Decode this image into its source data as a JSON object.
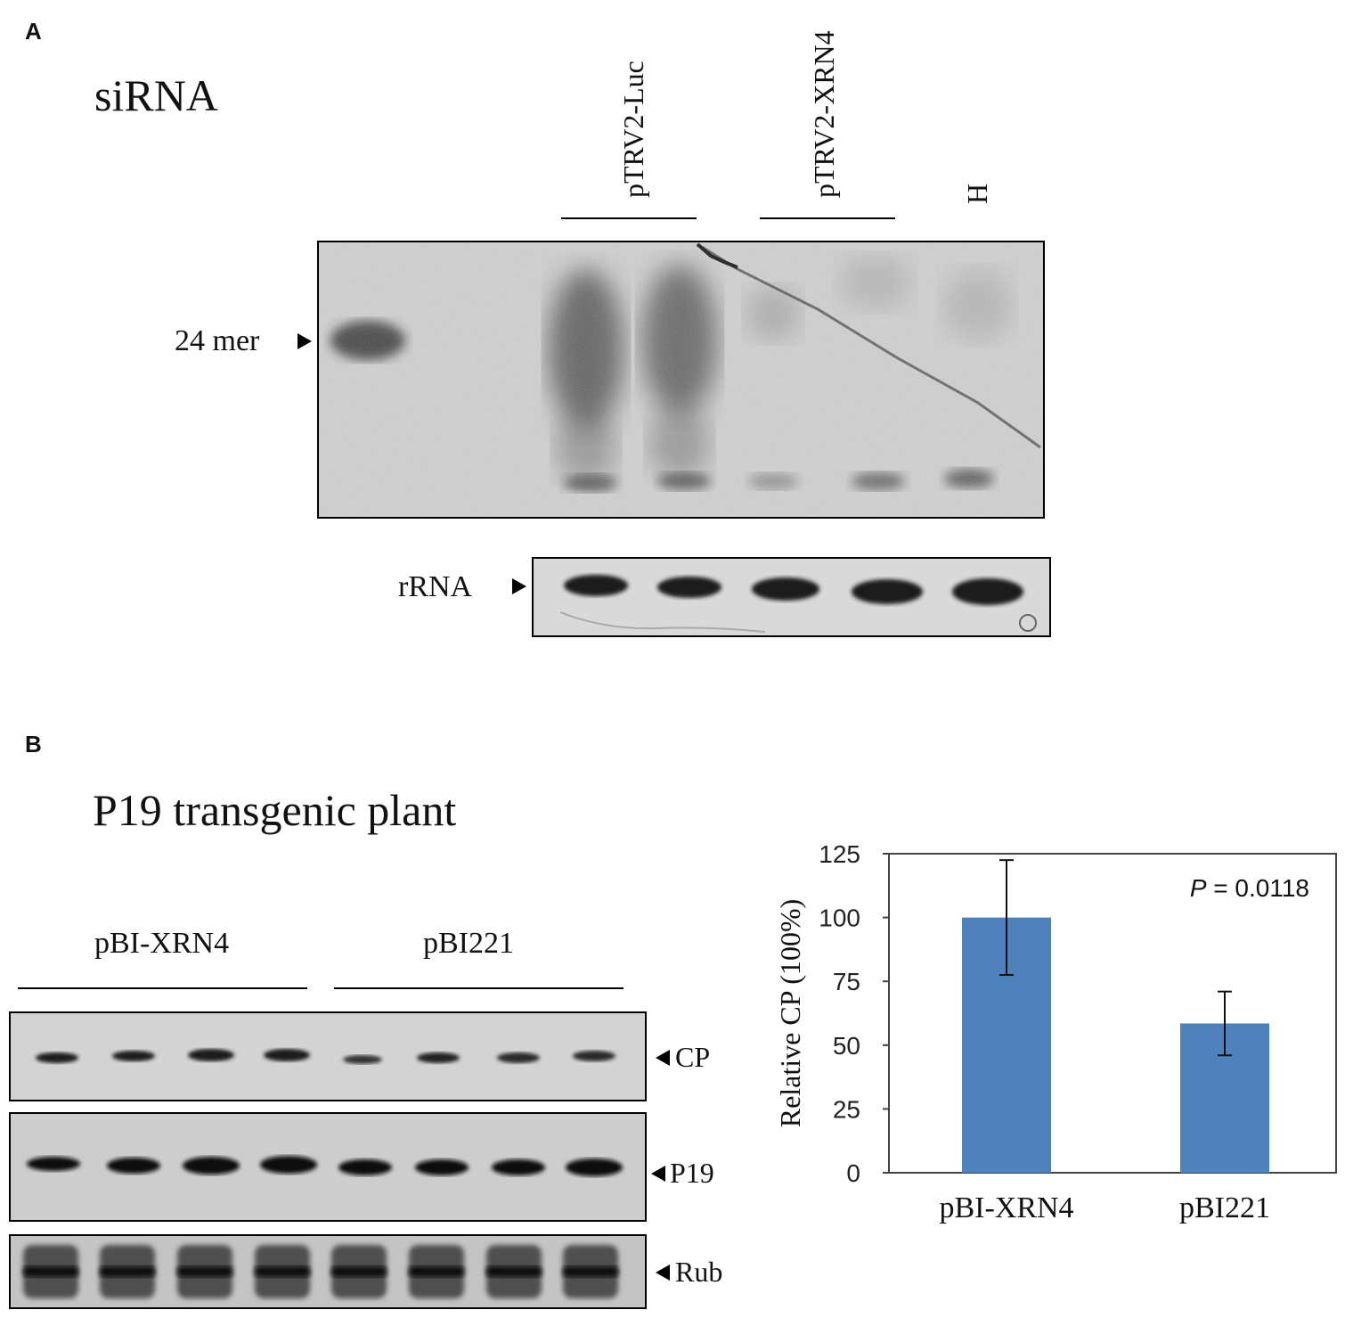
{
  "panel_a": {
    "letter": "A",
    "title": "siRNA",
    "lane_groups": [
      {
        "label": "pTRV2-Luc"
      },
      {
        "label": "pTRV2-XRN4"
      },
      {
        "label": "H"
      }
    ],
    "marker_label": "24 mer",
    "rrna_label": "rRNA"
  },
  "panel_b": {
    "letter": "B",
    "title": "P19 transgenic plant",
    "groups": [
      {
        "label": "pBI-XRN4"
      },
      {
        "label": "pBI221"
      }
    ],
    "blot_labels": {
      "cp": "CP",
      "p19": "P19",
      "rub": "Rub"
    }
  },
  "chart_data": {
    "type": "bar",
    "categories": [
      "pBI-XRN4",
      "pBI221"
    ],
    "values": [
      100,
      58.5
    ],
    "error": [
      22.5,
      12.5
    ],
    "ylabel": "Relative CP (100%)",
    "ylim": [
      0,
      125
    ],
    "yticks": [
      0,
      25,
      50,
      75,
      100,
      125
    ],
    "annotation_p": "P",
    "annotation_value": " = 0.0118",
    "bar_color": "#4f81bd"
  }
}
